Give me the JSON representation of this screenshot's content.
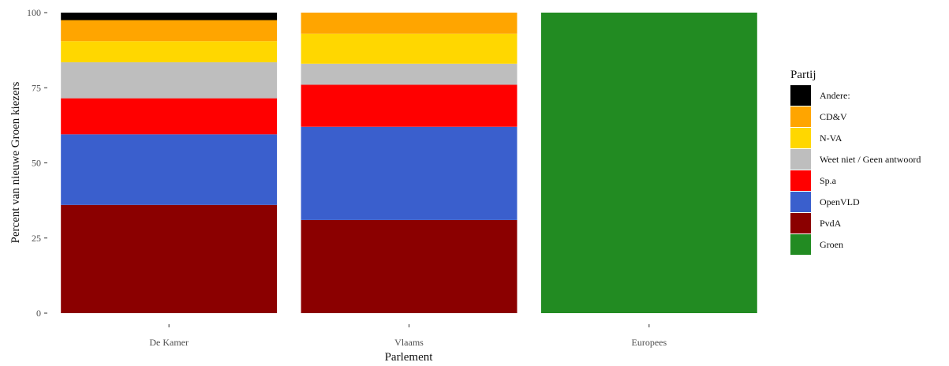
{
  "chart_data": {
    "type": "bar",
    "stacked": true,
    "xlabel": "Parlement",
    "ylabel": "Percent van nieuwe Groen kiezers",
    "ylim": [
      0,
      100
    ],
    "yticks": [
      0,
      25,
      50,
      75,
      100
    ],
    "categories": [
      "De Kamer",
      "Vlaams",
      "Europees"
    ],
    "legend_title": "Partij",
    "legend_position": "right",
    "grid": false,
    "series": [
      {
        "name": "Groen",
        "color": "#228B22",
        "values": [
          0,
          0,
          100
        ]
      },
      {
        "name": "PvdA",
        "color": "#8B0000",
        "values": [
          36,
          31,
          0
        ]
      },
      {
        "name": "OpenVLD",
        "color": "#3A5FCD",
        "values": [
          23.5,
          31,
          0
        ]
      },
      {
        "name": "Sp.a",
        "color": "#FF0000",
        "values": [
          12,
          14,
          0
        ]
      },
      {
        "name": "Weet niet / Geen antwoord",
        "color": "#BEBEBE",
        "values": [
          12,
          7,
          0
        ]
      },
      {
        "name": "N-VA",
        "color": "#FFD700",
        "values": [
          7,
          10,
          0
        ]
      },
      {
        "name": "CD&V",
        "color": "#FFA500",
        "values": [
          7,
          7,
          0
        ]
      },
      {
        "name": "Andere:",
        "color": "#000000",
        "values": [
          2.5,
          0,
          0
        ]
      }
    ],
    "legend_order": [
      "Andere:",
      "CD&V",
      "N-VA",
      "Weet niet / Geen antwoord",
      "Sp.a",
      "OpenVLD",
      "PvdA",
      "Groen"
    ]
  }
}
